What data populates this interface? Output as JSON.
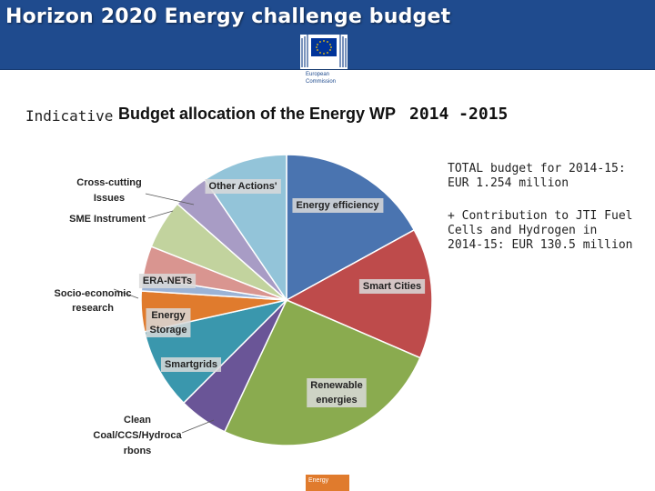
{
  "header": {
    "title": "Horizon 2020 Energy challenge budget",
    "logo_text_line1": "European",
    "logo_text_line2": "Commission"
  },
  "subtitle": {
    "prefix": "Indicative",
    "main": "Budget allocation of the Energy WP",
    "suffix": "2014 -2015"
  },
  "info": {
    "total_line1": "TOTAL budget for 2014-15:",
    "total_line2": "EUR 1.254 million",
    "jti_text": "+ Contribution to JTI Fuel Cells and Hydrogen in 2014-15: EUR 130.5 million"
  },
  "footer": {
    "tag": "Energy"
  },
  "chart_data": {
    "type": "pie",
    "title": "Budget allocation of the Energy WP 2014-2015",
    "start": "top, clockwise",
    "slices": [
      {
        "label": "Energy efficiency",
        "value": 17.0,
        "color": "#4a74b0"
      },
      {
        "label": "Smart Cities",
        "value": 14.5,
        "color": "#be4b4b"
      },
      {
        "label": "Renewable energies",
        "value": 25.5,
        "color": "#8aab4f"
      },
      {
        "label": "Clean Coal/CCS/Hydrocarbons",
        "value": 5.5,
        "color": "#6a5597"
      },
      {
        "label": "Smartgrids",
        "value": 9.0,
        "color": "#3a97ad"
      },
      {
        "label": "Energy Storage",
        "value": 4.5,
        "color": "#e07b2d"
      },
      {
        "label": "Socio-economic research",
        "value": 1.5,
        "color": "#9bb3d6"
      },
      {
        "label": "ERA-NETs",
        "value": 3.5,
        "color": "#d99590"
      },
      {
        "label": "SME Instrument",
        "value": 5.5,
        "color": "#c2d39e"
      },
      {
        "label": "Cross-cutting Issues",
        "value": 4.0,
        "color": "#a89cc5"
      },
      {
        "label": "Other Actions'",
        "value": 9.5,
        "color": "#93c4d9"
      }
    ],
    "labels": {
      "energy_efficiency": "Energy efficiency",
      "smart_cities": "Smart Cities",
      "renewable_1": "Renewable",
      "renewable_2": "energies",
      "clean_1": "Clean",
      "clean_2": "Coal/CCS/Hydroca",
      "clean_3": "rbons",
      "smartgrids": "Smartgrids",
      "storage_1": "Energy",
      "storage_2": "Storage",
      "socio_1": "Socio-economic",
      "socio_2": "research",
      "eranets": "ERA-NETs",
      "sme": "SME Instrument",
      "cross_1": "Cross-cutting",
      "cross_2": "Issues",
      "other": "Other Actions'"
    }
  }
}
